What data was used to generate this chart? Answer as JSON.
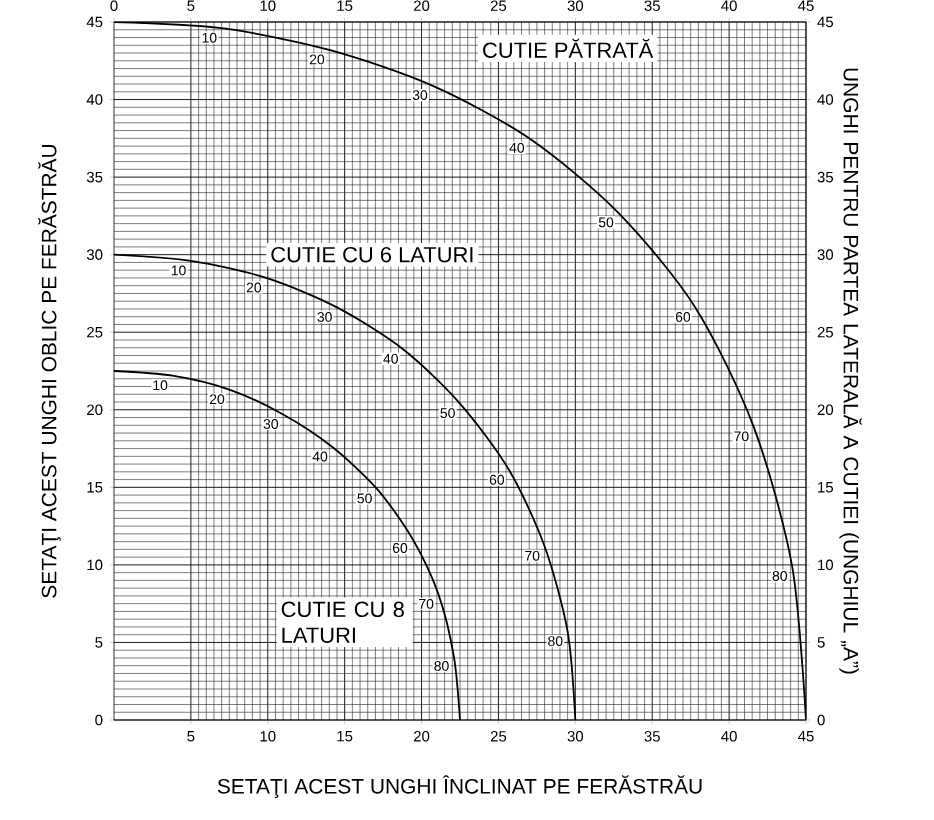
{
  "chart_data": {
    "type": "line",
    "xlabel": "SETAŢI ACEST UNGHI ÎNCLINAT PE FERĂSTRĂU",
    "ylabel": "SETAŢI ACEST UNGHI OBLIC PE FERĂSTRĂU",
    "y2label": "UNGHI PENTRU PARTEA LATERALĂ A CUTIEI (UNGHIUL „A”)",
    "xlim": [
      0,
      45
    ],
    "xticks": [
      5,
      10,
      15,
      20,
      25,
      30,
      35,
      40,
      45
    ],
    "ylim": [
      0,
      45
    ],
    "yticks": [
      0,
      5,
      10,
      15,
      20,
      25,
      30,
      35,
      40,
      45
    ],
    "x2lim": [
      0,
      45
    ],
    "x2ticks": [
      0,
      5,
      10,
      15,
      20,
      25,
      30,
      35,
      40,
      45
    ],
    "y2lim": [
      0,
      45
    ],
    "y2ticks": [
      0,
      5,
      10,
      15,
      20,
      25,
      30,
      35,
      40,
      45
    ],
    "grid": true,
    "series": [
      {
        "name": "CUTIE PĂTRATĂ",
        "color": "#000000",
        "x": [
          0,
          7.0,
          14.0,
          20.7,
          27.0,
          32.8,
          37.8,
          41.6,
          44.1,
          45
        ],
        "values": [
          45,
          44.6,
          43.2,
          40.9,
          37.5,
          32.7,
          26.6,
          18.9,
          9.9,
          0
        ]
      },
      {
        "name": "CUTIE CU 6 LATURI",
        "color": "#000000",
        "x": [
          0,
          5.0,
          9.9,
          14.5,
          18.8,
          22.5,
          25.7,
          28.0,
          29.5,
          30
        ],
        "values": [
          30,
          29.6,
          28.5,
          26.6,
          23.9,
          20.4,
          16.1,
          11.2,
          5.7,
          0
        ]
      },
      {
        "name": "CUTIE CU 8 LATURI",
        "color": "#000000",
        "x": [
          0,
          3.8,
          7.5,
          11.0,
          14.2,
          17.1,
          19.4,
          21.1,
          22.1,
          22.5
        ],
        "values": [
          22.5,
          22.2,
          21.3,
          19.7,
          17.6,
          14.9,
          11.7,
          8.1,
          4.1,
          0
        ]
      }
    ],
    "annotations": [
      {
        "text": "10",
        "x": 7.0,
        "y": 44.6
      },
      {
        "text": "20",
        "x": 14.0,
        "y": 43.2
      },
      {
        "text": "30",
        "x": 20.7,
        "y": 40.9
      },
      {
        "text": "40",
        "x": 27.0,
        "y": 37.5
      },
      {
        "text": "50",
        "x": 32.8,
        "y": 32.7
      },
      {
        "text": "60",
        "x": 37.8,
        "y": 26.6
      },
      {
        "text": "70",
        "x": 41.6,
        "y": 18.9
      },
      {
        "text": "80",
        "x": 44.1,
        "y": 9.9
      },
      {
        "text": "10",
        "x": 5.0,
        "y": 29.6
      },
      {
        "text": "20",
        "x": 9.9,
        "y": 28.5
      },
      {
        "text": "30",
        "x": 14.5,
        "y": 26.6
      },
      {
        "text": "40",
        "x": 18.8,
        "y": 23.9
      },
      {
        "text": "50",
        "x": 22.5,
        "y": 20.4
      },
      {
        "text": "60",
        "x": 25.7,
        "y": 16.1
      },
      {
        "text": "70",
        "x": 28.0,
        "y": 11.2
      },
      {
        "text": "80",
        "x": 29.5,
        "y": 5.7
      },
      {
        "text": "10",
        "x": 3.8,
        "y": 22.2
      },
      {
        "text": "20",
        "x": 7.5,
        "y": 21.3
      },
      {
        "text": "30",
        "x": 11.0,
        "y": 19.7
      },
      {
        "text": "40",
        "x": 14.2,
        "y": 17.6
      },
      {
        "text": "50",
        "x": 17.1,
        "y": 14.9
      },
      {
        "text": "60",
        "x": 19.4,
        "y": 11.7
      },
      {
        "text": "70",
        "x": 21.1,
        "y": 8.1
      },
      {
        "text": "80",
        "x": 22.1,
        "y": 4.1
      }
    ]
  }
}
